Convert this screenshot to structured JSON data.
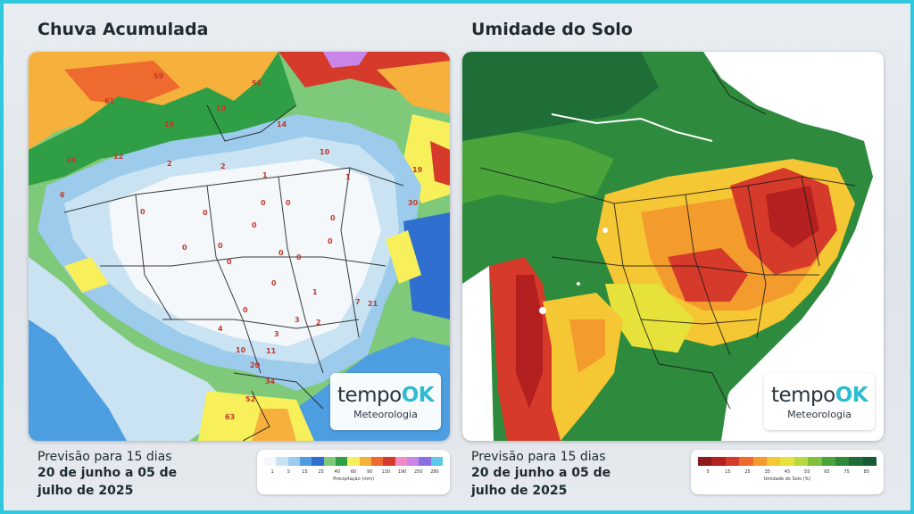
{
  "left_panel": {
    "title": "Chuva Acumulada",
    "forecast": {
      "line1": "Previsão para 15 dias",
      "line2": "20 de junho a 05 de",
      "line3": "julho de 2025"
    },
    "logo": {
      "brand_part1": "tempo",
      "brand_part2": "OK",
      "subtitle": "Meteorologia"
    },
    "legend": {
      "caption": "Precipitação (mm)",
      "ticks": [
        "1",
        "5",
        "15",
        "25",
        "40",
        "60",
        "90",
        "130",
        "190",
        "250",
        "280"
      ],
      "colors": [
        "#f4f8fb",
        "#c9e3f3",
        "#9ccbeb",
        "#4c9ee0",
        "#2f6fd0",
        "#7fc97a",
        "#2f9e44",
        "#f7f05a",
        "#f6b13d",
        "#ef6a2e",
        "#d63a2a",
        "#f28cc4",
        "#c986e8",
        "#8a6fe0",
        "#5fc8e6"
      ]
    },
    "rain_labels": [
      "59",
      "56",
      "61",
      "19",
      "19",
      "14",
      "12",
      "24",
      "2",
      "2",
      "1",
      "10",
      "19",
      "6",
      "1",
      "0",
      "0",
      "0",
      "0",
      "0",
      "30",
      "0",
      "0",
      "0",
      "0",
      "0",
      "0",
      "0",
      "0",
      "1",
      "7",
      "21",
      "0",
      "3",
      "2",
      "4",
      "3",
      "10",
      "11",
      "20",
      "34",
      "52",
      "63"
    ]
  },
  "right_panel": {
    "title": "Umidade do Solo",
    "forecast": {
      "line1": "Previsão para 15 dias",
      "line2": "20 de junho a 05 de",
      "line3": "julho de 2025"
    },
    "logo": {
      "brand_part1": "tempo",
      "brand_part2": "OK",
      "subtitle": "Meteorologia"
    },
    "legend": {
      "caption": "Umidade do Solo (%)",
      "ticks": [
        "5",
        "15",
        "25",
        "35",
        "45",
        "55",
        "65",
        "75",
        "85"
      ],
      "colors": [
        "#8b1a1a",
        "#b3201f",
        "#d63a2a",
        "#ec6a2b",
        "#f39b2d",
        "#f6c734",
        "#e6e23b",
        "#b8d93e",
        "#7fc13d",
        "#4aa43a",
        "#2e8a3c",
        "#1f6e38",
        "#175a33"
      ]
    }
  }
}
